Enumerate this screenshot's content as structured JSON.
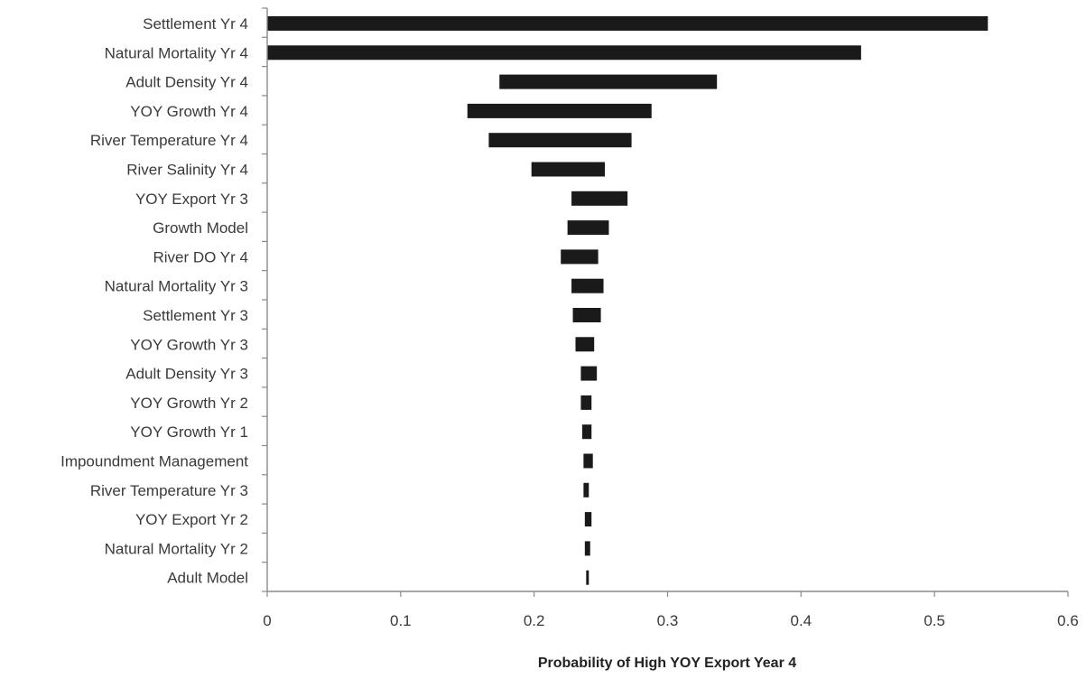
{
  "chart_data": {
    "type": "bar",
    "orientation": "horizontal",
    "subtype": "tornado",
    "title": "",
    "xlabel": "Probability of High YOY Export Year 4",
    "ylabel": "",
    "xlim": [
      0,
      0.6
    ],
    "xticks": [
      0,
      0.1,
      0.2,
      0.3,
      0.4,
      0.5,
      0.6
    ],
    "xtick_labels": [
      "0",
      "0.1",
      "0.2",
      "0.3",
      "0.4",
      "0.5",
      "0.6"
    ],
    "grid": false,
    "legend": "none",
    "bar_color": "#1a1a1a",
    "categories": [
      "Settlement Yr 4",
      "Natural Mortality Yr 4",
      "Adult Density Yr 4",
      "YOY Growth Yr 4",
      "River Temperature Yr 4",
      "River Salinity Yr 4",
      "YOY Export Yr 3",
      "Growth Model",
      "River DO Yr 4",
      "Natural Mortality Yr 3",
      "Settlement Yr 3",
      "YOY Growth Yr 3",
      "Adult Density Yr 3",
      "YOY Growth Yr 2",
      "YOY Growth Yr 1",
      "Impoundment Management",
      "River Temperature Yr 3",
      "YOY Export Yr 2",
      "Natural Mortality Yr 2",
      "Adult Model"
    ],
    "low": [
      0.0,
      0.0,
      0.174,
      0.15,
      0.166,
      0.198,
      0.228,
      0.225,
      0.22,
      0.228,
      0.229,
      0.231,
      0.235,
      0.235,
      0.236,
      0.237,
      0.237,
      0.238,
      0.238,
      0.239
    ],
    "high": [
      0.54,
      0.445,
      0.337,
      0.288,
      0.273,
      0.253,
      0.27,
      0.256,
      0.248,
      0.252,
      0.25,
      0.245,
      0.247,
      0.243,
      0.243,
      0.244,
      0.241,
      0.243,
      0.242,
      0.241
    ]
  }
}
